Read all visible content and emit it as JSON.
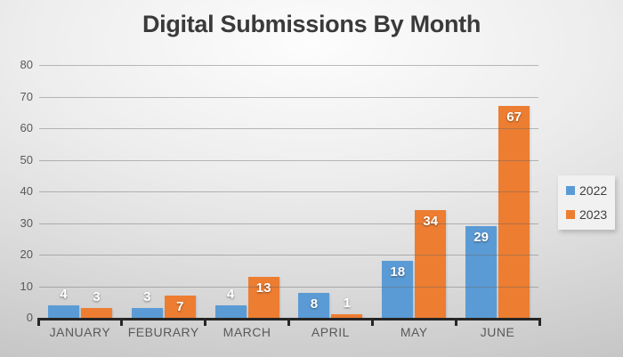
{
  "chart_data": {
    "type": "bar",
    "title": "Digital Submissions By Month",
    "categories": [
      "JANUARY",
      "FEBURARY",
      "MARCH",
      "APRIL",
      "MAY",
      "JUNE"
    ],
    "series": [
      {
        "name": "2022",
        "color": "#5B9BD5",
        "values": [
          4,
          3,
          4,
          8,
          18,
          29
        ]
      },
      {
        "name": "2023",
        "color": "#ED7D31",
        "values": [
          3,
          7,
          13,
          1,
          34,
          67
        ]
      }
    ],
    "xlabel": "",
    "ylabel": "",
    "ylim": [
      0,
      80
    ],
    "yticks": [
      0,
      10,
      20,
      30,
      40,
      50,
      60,
      70,
      80
    ],
    "grid": true,
    "data_labels": true,
    "legend_position": "right"
  },
  "legend": {
    "items": [
      {
        "label": "2022",
        "color": "#5B9BD5"
      },
      {
        "label": "2023",
        "color": "#ED7D31"
      }
    ]
  },
  "colors": {
    "series_2022": "#5B9BD5",
    "series_2023": "#ED7D31",
    "axis_line": "#262626",
    "tick_label": "#595959",
    "title_text": "#3a3a3a",
    "data_label": "#ffffff"
  }
}
